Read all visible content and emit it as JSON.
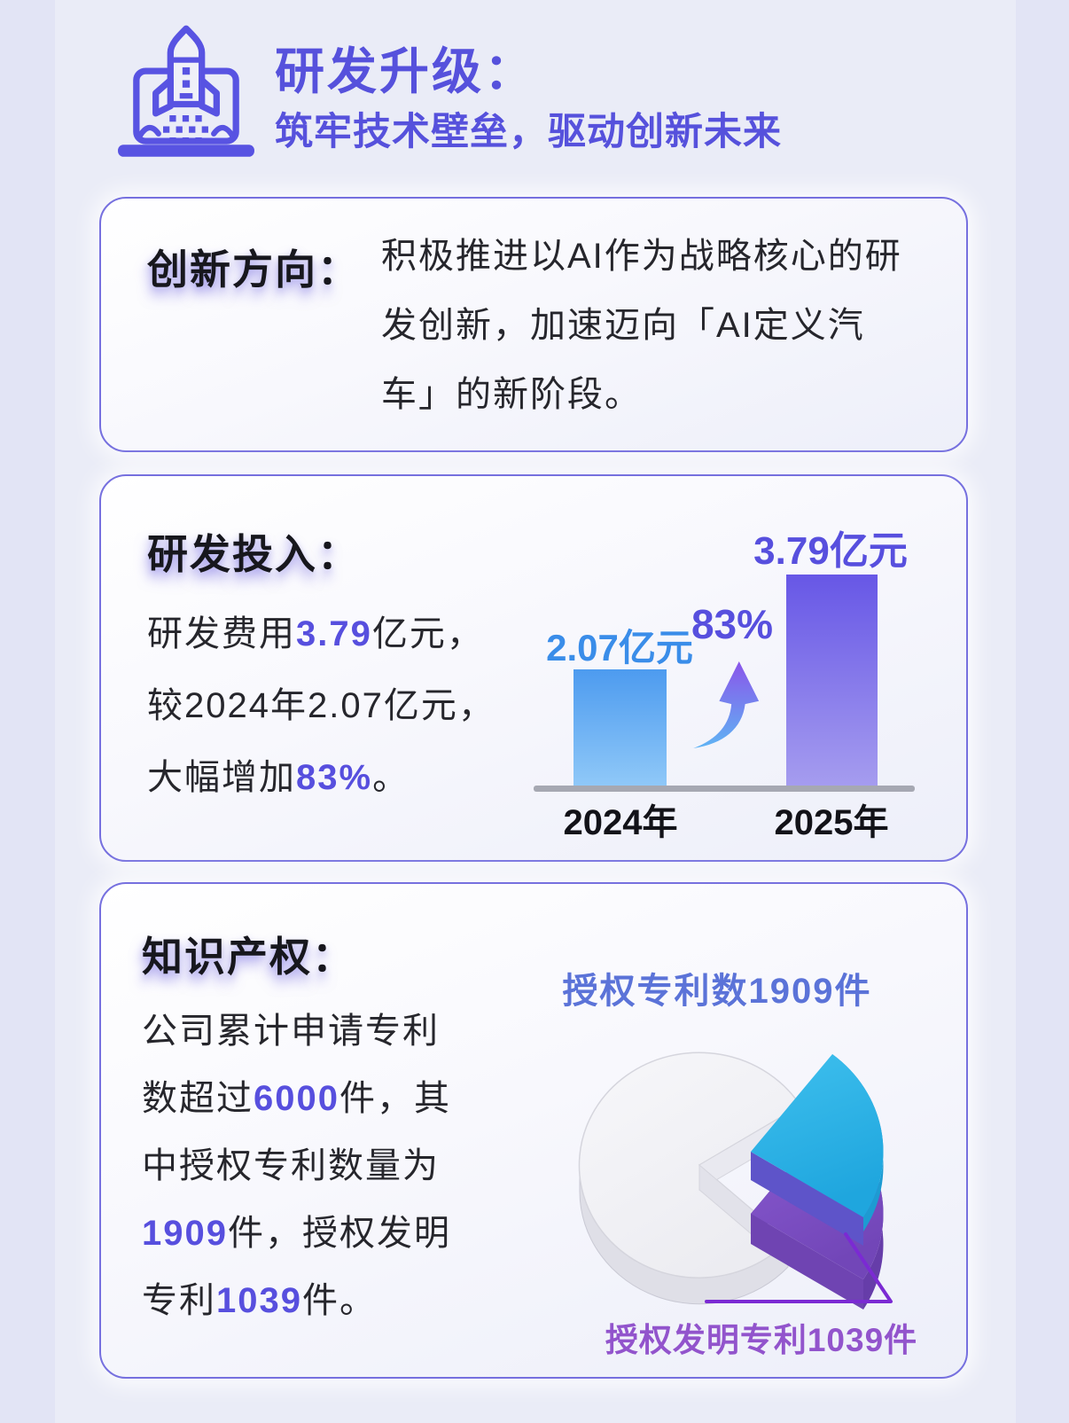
{
  "page": {
    "bg": "#EAECF7",
    "edge_color": "#E2E4F5",
    "card_border_color": "#7670DF",
    "accent_purple": "#574FDE",
    "accent_blue": "#3A8DE9"
  },
  "header": {
    "title": "研发升级：",
    "subtitle": "筑牢技术壁垒，驱动创新未来",
    "icon": "rocket-launch-laptop-icon",
    "accent": "#5651DC"
  },
  "cards": {
    "innovation": {
      "title": "创新方向：",
      "body_segments": [
        {
          "text": "积极推进以AI作为战略核心的研\n发创新，加速迈向「AI定义汽\n车」的新阶段。",
          "accent": false
        }
      ]
    },
    "rd_investment": {
      "title": "研发投入：",
      "body_segments": [
        {
          "text": "研发费用",
          "accent": false
        },
        {
          "text": "3.79",
          "accent": true
        },
        {
          "text": "亿元，\n较2024年2.07亿元，\n大幅增加",
          "accent": false
        },
        {
          "text": "83%",
          "accent": true
        },
        {
          "text": "。",
          "accent": false
        }
      ]
    },
    "ip": {
      "title": "知识产权：",
      "body_segments": [
        {
          "text": "公司累计申请专利\n数超过",
          "accent": false
        },
        {
          "text": "6000",
          "accent": true
        },
        {
          "text": "件，其\n中授权专利数量为\n",
          "accent": false
        },
        {
          "text": "1909",
          "accent": true
        },
        {
          "text": "件，授权发明\n专利",
          "accent": false
        },
        {
          "text": "1039",
          "accent": true
        },
        {
          "text": "件。",
          "accent": false
        }
      ]
    }
  },
  "chart_data": [
    {
      "type": "bar",
      "categories": [
        "2024年",
        "2025年"
      ],
      "values": [
        2.07,
        3.79
      ],
      "unit": "亿元",
      "data_labels": [
        "2.07亿元",
        "3.79亿元"
      ],
      "annotations": [
        "83%"
      ],
      "ylim": [
        0,
        4
      ],
      "grid": false,
      "legend": false,
      "bar_colors": [
        [
          "#4D9BEF",
          "#8FC8F8"
        ],
        [
          "#6757E6",
          "#A59CEF"
        ]
      ],
      "label_colors": [
        "#3A8DE9",
        "#574FDE"
      ],
      "baseline_color": "#A6A8B2"
    },
    {
      "type": "pie",
      "labels": [
        "授权专利数1909件",
        "授权发明专利1039件"
      ],
      "values": [
        1909,
        1039
      ],
      "style": "3d-exploded",
      "base_color": "#F2F2F6",
      "secondary_color": "#29B1E5",
      "highlight_color": "#7C4EC4",
      "title_label_color": "#5B73D8",
      "callout_label_color": "#9254CC"
    }
  ]
}
